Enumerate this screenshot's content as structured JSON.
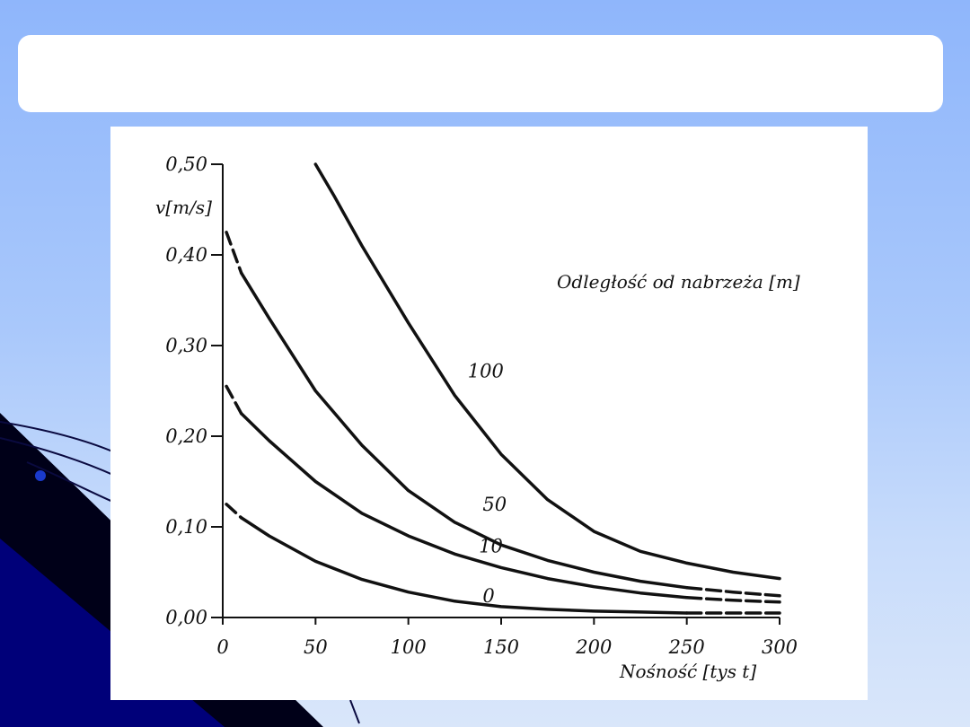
{
  "title": "",
  "colors": {
    "background_top": "#8fb6fb",
    "background_bottom": "#d9e6fa",
    "deco_dark": "#000010",
    "deco_navy": "#00008b",
    "line": "#111111"
  },
  "chart_data": {
    "type": "line",
    "title": "",
    "xlabel": "Nośność [tys t]",
    "ylabel": "v[m/s]",
    "legend_title": "Odległość od nabrzeża [m]",
    "xlim": [
      0,
      300
    ],
    "ylim": [
      0,
      0.5
    ],
    "x_ticks": [
      {
        "value": 0,
        "label": "0"
      },
      {
        "value": 50,
        "label": "50"
      },
      {
        "value": 100,
        "label": "100"
      },
      {
        "value": 150,
        "label": "150"
      },
      {
        "value": 200,
        "label": "200"
      },
      {
        "value": 250,
        "label": "250"
      },
      {
        "value": 300,
        "label": "300"
      }
    ],
    "y_ticks": [
      {
        "value": 0.0,
        "label": "0,00"
      },
      {
        "value": 0.1,
        "label": "0,10"
      },
      {
        "value": 0.2,
        "label": "0,20"
      },
      {
        "value": 0.3,
        "label": "0,30"
      },
      {
        "value": 0.4,
        "label": "0,40"
      },
      {
        "value": 0.5,
        "label": "0,50"
      }
    ],
    "grid": false,
    "series": [
      {
        "name": "100",
        "x": [
          50,
          60,
          75,
          100,
          125,
          150,
          175,
          200,
          225,
          250,
          275,
          300
        ],
        "y": [
          0.5,
          0.465,
          0.41,
          0.325,
          0.245,
          0.18,
          0.13,
          0.095,
          0.073,
          0.06,
          0.05,
          0.043
        ],
        "dashed_from": null
      },
      {
        "name": "50",
        "x": [
          2,
          10,
          25,
          50,
          75,
          100,
          125,
          150,
          175,
          200,
          225,
          250,
          275,
          300
        ],
        "y": [
          0.425,
          0.38,
          0.33,
          0.25,
          0.19,
          0.14,
          0.105,
          0.08,
          0.063,
          0.05,
          0.04,
          0.033,
          0.028,
          0.024
        ],
        "dashed_from": 250,
        "dashed_to": 10
      },
      {
        "name": "10",
        "x": [
          2,
          10,
          25,
          50,
          75,
          100,
          125,
          150,
          175,
          200,
          225,
          250,
          275,
          300
        ],
        "y": [
          0.255,
          0.225,
          0.195,
          0.15,
          0.115,
          0.09,
          0.07,
          0.055,
          0.043,
          0.034,
          0.027,
          0.022,
          0.019,
          0.017
        ],
        "dashed_from": 250,
        "dashed_to": 10
      },
      {
        "name": "0",
        "x": [
          2,
          10,
          25,
          50,
          75,
          100,
          125,
          150,
          175,
          200,
          225,
          250,
          275,
          300
        ],
        "y": [
          0.125,
          0.11,
          0.09,
          0.062,
          0.042,
          0.028,
          0.018,
          0.012,
          0.009,
          0.007,
          0.006,
          0.005,
          0.005,
          0.005
        ],
        "dashed_from": 250,
        "dashed_to": 10
      }
    ]
  }
}
